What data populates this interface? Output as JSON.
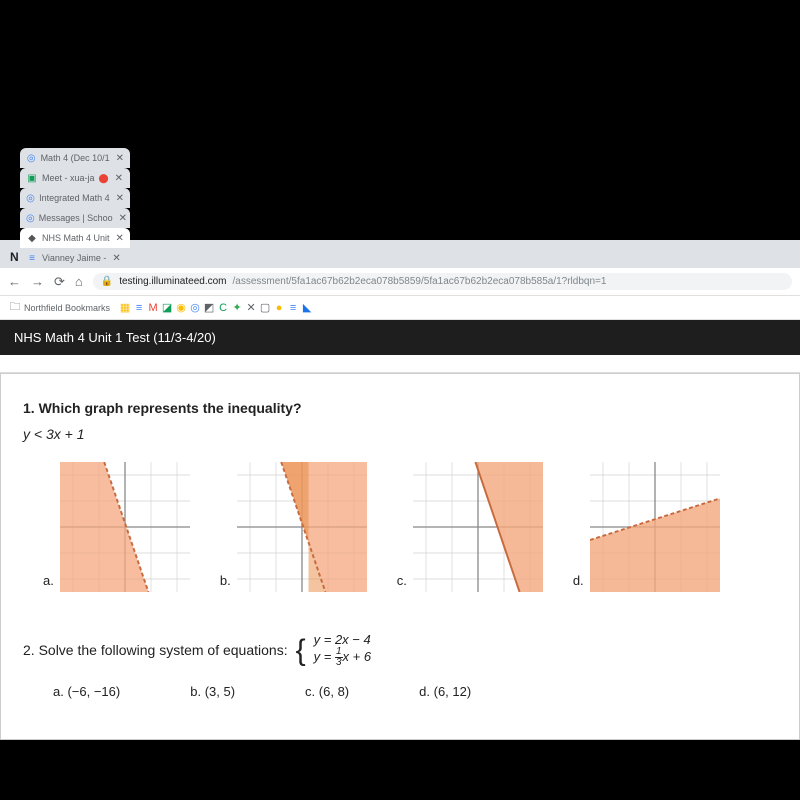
{
  "tabs": [
    {
      "icon": "◎",
      "iconColor": "#4285f4",
      "title": "Math 4 (Dec 10/1",
      "active": false
    },
    {
      "icon": "▣",
      "iconColor": "#0f9d58",
      "title": "Meet - xua-ja",
      "dotColor": "#ea4335",
      "active": false
    },
    {
      "icon": "◎",
      "iconColor": "#4285f4",
      "title": "Integrated Math 4",
      "active": false
    },
    {
      "icon": "◎",
      "iconColor": "#4285f4",
      "title": "Messages | Schoo",
      "active": false
    },
    {
      "icon": "◆",
      "iconColor": "#555",
      "title": "NHS Math 4 Unit",
      "active": true
    },
    {
      "icon": "≡",
      "iconColor": "#4285f4",
      "title": "Vianney Jaime -",
      "active": false
    }
  ],
  "url": {
    "host": "testing.illuminateed.com",
    "path": "/assessment/5fa1ac67b62b2eca078b5859/5fa1ac67b62b2eca078b585a/1?rldbqn=1"
  },
  "bookmarks": {
    "folder": "Northfield Bookmarks",
    "icons": [
      {
        "glyph": "▦",
        "color": "#fbbc04"
      },
      {
        "glyph": "≡",
        "color": "#4285f4"
      },
      {
        "glyph": "M",
        "color": "#ea4335"
      },
      {
        "glyph": "◪",
        "color": "#0f9d58"
      },
      {
        "glyph": "◉",
        "color": "#fbbc04"
      },
      {
        "glyph": "◎",
        "color": "#4285f4"
      },
      {
        "glyph": "◩",
        "color": "#5f6368"
      },
      {
        "glyph": "C",
        "color": "#0f9d58"
      },
      {
        "glyph": "✦",
        "color": "#34a853"
      },
      {
        "glyph": "✕",
        "color": "#5f6368"
      },
      {
        "glyph": "▢",
        "color": "#5f6368"
      },
      {
        "glyph": "●",
        "color": "#fbbc04"
      },
      {
        "glyph": "≡",
        "color": "#4285f4"
      },
      {
        "glyph": "◣",
        "color": "#1a73e8"
      }
    ]
  },
  "header_title": "NHS Math 4 Unit 1 Test (11/3-4/20)",
  "q1": {
    "prompt": "1. Which graph represents the inequality?",
    "inequality": "y < 3x + 1",
    "labels": [
      "a.",
      "b.",
      "c.",
      "d."
    ]
  },
  "q2": {
    "prompt": "2. Solve the following system of equations:",
    "eq1": "y = 2x − 4",
    "eq2_pre": "y = ",
    "eq2_num": "1",
    "eq2_den": "3",
    "eq2_post": "x + 6",
    "choices": [
      {
        "l": "a.",
        "v": "(−6, −16)"
      },
      {
        "l": "b.",
        "v": "(3, 5)"
      },
      {
        "l": "c.",
        "v": "(6, 8)"
      },
      {
        "l": "d.",
        "v": "(6, 12)"
      }
    ]
  },
  "graph_style": {
    "bg": "#ffffff",
    "grid": "#d0d0d0",
    "axis": "#888888",
    "shade_orange": "#f4a77e",
    "shade_orange_alpha": "0.75",
    "line": "#c76b3e"
  }
}
